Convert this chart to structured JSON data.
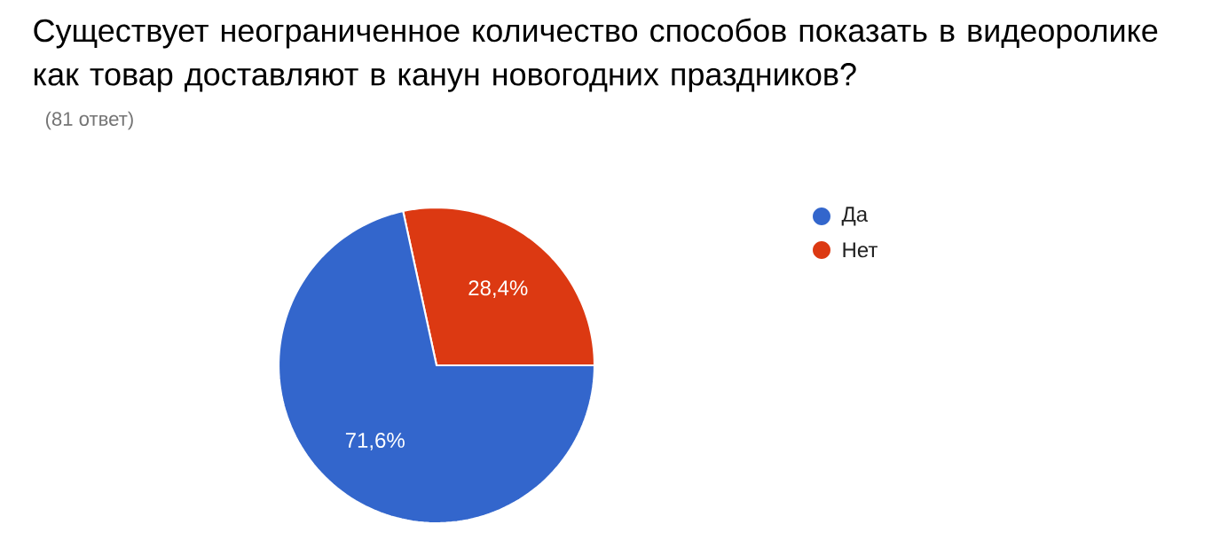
{
  "chart_data": {
    "type": "pie",
    "title": "Существует неограниченное количество способов показать в видеоролике как товар доставляют в канун новогодних праздников?",
    "subtitle": "(81 ответ)",
    "categories": [
      "Да",
      "Нет"
    ],
    "values": [
      71.6,
      28.4
    ],
    "colors": [
      "#3366cc",
      "#dc3912"
    ],
    "value_labels": [
      "71,6%",
      "28,4%"
    ],
    "legend": "right"
  }
}
